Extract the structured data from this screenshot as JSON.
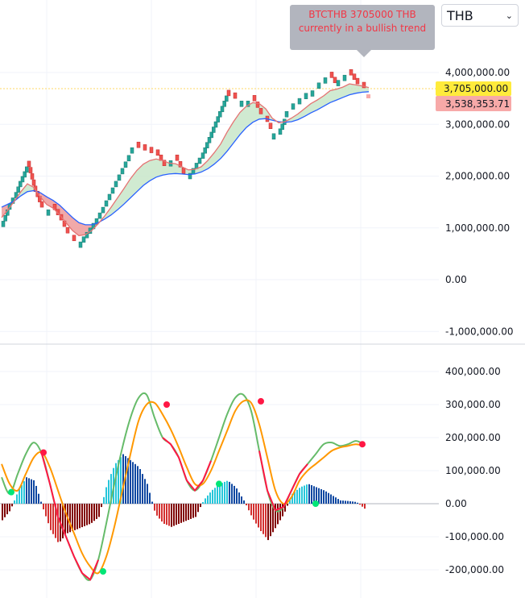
{
  "tooltip": {
    "line1": "BTCTHB 3705000 THB",
    "line2": "currently in a bullish trend"
  },
  "currency_select": {
    "value": "THB",
    "chevron": "⌄",
    "icon": "chevron-down-icon"
  },
  "colors": {
    "up": "#26a69a",
    "down": "#ef5350",
    "ema_fast": "#e57373",
    "ema_slow": "#2962ff",
    "fill_bull": "#c8e6c9",
    "fill_bear": "#ef9a9a",
    "macd": "#66bb6a",
    "signal": "#ff9800",
    "hist_pos_strong": "#26c6da",
    "hist_pos_weak": "#0d47a1",
    "hist_neg_strong": "#d32f2f",
    "hist_neg_weak": "#7f0000",
    "cross_bull": "#00e676",
    "cross_bear": "#ff1744",
    "price_badge": "#ffeb3b",
    "ema_badge": "#f7a9a8"
  },
  "chart_data": [
    {
      "type": "line",
      "subtype": "renko",
      "y_ticks": [
        "4,000,000.00",
        "3,000,000.00",
        "2,000,000.00",
        "1,000,000.00",
        "0.00",
        "-1,000,000.00"
      ],
      "y_tick_values": [
        4000000,
        3000000,
        2000000,
        1000000,
        0,
        -1000000
      ],
      "ylim": [
        -1100000,
        4550000
      ],
      "last_price": 3705000,
      "last_price_label": "3,705,000.00",
      "ema_value": 3538353.71,
      "ema_label": "3,538,353.71",
      "x": [
        0,
        8,
        16,
        24,
        32,
        40,
        48,
        56,
        64,
        72,
        80,
        88,
        96,
        104,
        112,
        120,
        128,
        136,
        144,
        152,
        160,
        168,
        176,
        184,
        192,
        200,
        208,
        216,
        224,
        232,
        240,
        248,
        256,
        264,
        272,
        280,
        288,
        296,
        304,
        312,
        320,
        328,
        336,
        344,
        352,
        360,
        368,
        376,
        384,
        392,
        400,
        408,
        416,
        424,
        432,
        440,
        448,
        456
      ],
      "price": [
        1020000,
        1350000,
        1580000,
        1900000,
        2180000,
        1700000,
        1400000,
        1250000,
        1350000,
        1150000,
        900000,
        750000,
        630000,
        830000,
        1000000,
        1180000,
        1400000,
        1650000,
        1900000,
        2150000,
        2400000,
        2550000,
        2500000,
        2450000,
        2400000,
        2200000,
        2150000,
        2300000,
        2050000,
        1960000,
        2150000,
        2350000,
        2650000,
        2950000,
        3250000,
        3550000,
        3500000,
        3380000,
        3450000,
        3450000,
        3200000,
        3050000,
        2780000,
        2820000,
        3100000,
        3250000,
        3400000,
        3500000,
        3600000,
        3650000,
        3800000,
        3900000,
        3700000,
        3850000,
        3950000,
        3780000,
        3705000,
        3600000
      ],
      "ema_fast": [
        1200000,
        1350000,
        1520000,
        1700000,
        1850000,
        1780000,
        1600000,
        1450000,
        1380000,
        1250000,
        1100000,
        950000,
        850000,
        870000,
        950000,
        1080000,
        1230000,
        1400000,
        1580000,
        1760000,
        1950000,
        2110000,
        2230000,
        2300000,
        2330000,
        2300000,
        2250000,
        2240000,
        2180000,
        2120000,
        2130000,
        2180000,
        2300000,
        2450000,
        2620000,
        2850000,
        3050000,
        3230000,
        3350000,
        3420000,
        3400000,
        3300000,
        3120000,
        3030000,
        3050000,
        3120000,
        3200000,
        3300000,
        3400000,
        3470000,
        3550000,
        3650000,
        3680000,
        3720000,
        3780000,
        3760000,
        3740000,
        3710000
      ],
      "ema_slow": [
        1400000,
        1460000,
        1520000,
        1620000,
        1700000,
        1720000,
        1680000,
        1600000,
        1530000,
        1440000,
        1320000,
        1200000,
        1100000,
        1060000,
        1060000,
        1100000,
        1170000,
        1250000,
        1350000,
        1460000,
        1580000,
        1700000,
        1820000,
        1910000,
        1980000,
        2020000,
        2040000,
        2050000,
        2040000,
        2030000,
        2040000,
        2080000,
        2140000,
        2230000,
        2340000,
        2480000,
        2640000,
        2800000,
        2940000,
        3040000,
        3100000,
        3110000,
        3080000,
        3050000,
        3040000,
        3050000,
        3090000,
        3150000,
        3220000,
        3280000,
        3350000,
        3420000,
        3470000,
        3520000,
        3570000,
        3600000,
        3620000,
        3630000
      ]
    },
    {
      "type": "line",
      "subtype": "macd",
      "y_ticks": [
        "400,000.00",
        "300,000.00",
        "200,000.00",
        "100,000.00",
        "0.00",
        "-100,000.00",
        "-200,000.00"
      ],
      "y_tick_values": [
        400000,
        300000,
        200000,
        100000,
        0,
        -100000,
        -200000
      ],
      "ylim": [
        -240000,
        440000
      ],
      "x": [
        0,
        10,
        20,
        30,
        40,
        50,
        60,
        70,
        80,
        90,
        100,
        110,
        120,
        130,
        140,
        150,
        160,
        170,
        180,
        190,
        200,
        210,
        220,
        230,
        240,
        250,
        260,
        270,
        280,
        290,
        300,
        310,
        320,
        330,
        340,
        350,
        360,
        370,
        380,
        390,
        400,
        410,
        420,
        430,
        440,
        450
      ],
      "macd": [
        80000,
        30000,
        90000,
        150000,
        185000,
        150000,
        60000,
        -40000,
        -100000,
        -160000,
        -210000,
        -230000,
        -170000,
        -60000,
        60000,
        170000,
        260000,
        320000,
        330000,
        260000,
        200000,
        180000,
        140000,
        70000,
        40000,
        70000,
        130000,
        200000,
        270000,
        320000,
        330000,
        280000,
        160000,
        40000,
        -20000,
        -10000,
        40000,
        90000,
        120000,
        150000,
        180000,
        185000,
        175000,
        180000,
        190000,
        180000
      ],
      "signal": [
        120000,
        60000,
        40000,
        90000,
        140000,
        155000,
        110000,
        40000,
        -30000,
        -90000,
        -150000,
        -190000,
        -210000,
        -160000,
        -70000,
        40000,
        150000,
        250000,
        300000,
        305000,
        270000,
        225000,
        170000,
        110000,
        60000,
        60000,
        100000,
        160000,
        220000,
        280000,
        310000,
        305000,
        240000,
        140000,
        40000,
        0,
        20000,
        70000,
        100000,
        120000,
        140000,
        160000,
        170000,
        175000,
        180000,
        175000
      ],
      "histogram": [
        -50000,
        -20000,
        40000,
        80000,
        70000,
        -10000,
        -80000,
        -120000,
        -90000,
        -80000,
        -70000,
        -60000,
        -40000,
        60000,
        120000,
        150000,
        130000,
        110000,
        60000,
        -30000,
        -60000,
        -70000,
        -60000,
        -50000,
        -40000,
        10000,
        40000,
        60000,
        70000,
        50000,
        10000,
        -40000,
        -80000,
        -110000,
        -70000,
        -30000,
        30000,
        50000,
        60000,
        50000,
        40000,
        25000,
        10000,
        8000,
        5000,
        -15000
      ],
      "crosses": [
        {
          "x": 12,
          "value": 35000,
          "dir": "bull"
        },
        {
          "x": 52,
          "value": 155000,
          "dir": "bear"
        },
        {
          "x": 126,
          "value": -205000,
          "dir": "bull"
        },
        {
          "x": 205,
          "value": 300000,
          "dir": "bear"
        },
        {
          "x": 270,
          "value": 60000,
          "dir": "bull"
        },
        {
          "x": 322,
          "value": 310000,
          "dir": "bear"
        },
        {
          "x": 390,
          "value": 0,
          "dir": "bull"
        },
        {
          "x": 448,
          "value": 180000,
          "dir": "bear"
        }
      ]
    }
  ]
}
